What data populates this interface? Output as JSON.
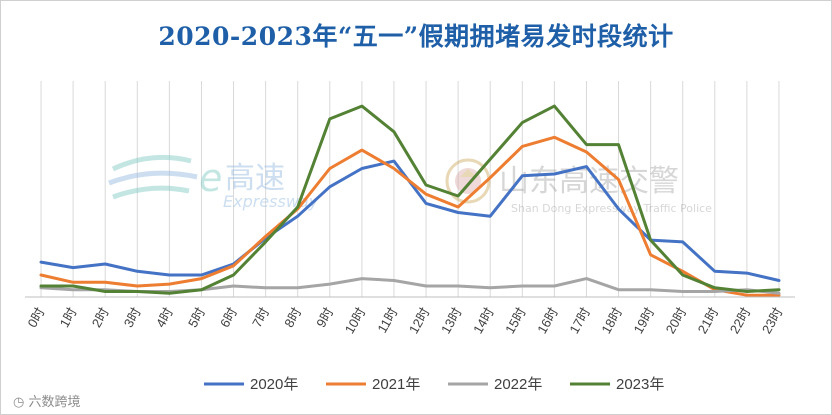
{
  "chart_data": {
    "type": "line",
    "title": "2020-2023年“五一”假期拥堵易发时段统计",
    "categories": [
      "0时",
      "1时",
      "2时",
      "3时",
      "4时",
      "5时",
      "6时",
      "7时",
      "8时",
      "9时",
      "10时",
      "11时",
      "12时",
      "13时",
      "14时",
      "15时",
      "16时",
      "17时",
      "18时",
      "19时",
      "20时",
      "21时",
      "22时",
      "23时"
    ],
    "ylim": [
      0,
      100
    ],
    "grid": "vertical",
    "legend_position": "bottom",
    "series": [
      {
        "name": "2020年",
        "color": "#4472c4",
        "values": [
          19,
          16,
          18,
          14,
          12,
          12,
          18,
          32,
          44,
          60,
          70,
          74,
          51,
          46,
          44,
          66,
          67,
          71,
          48,
          31,
          30,
          14,
          13,
          9
        ]
      },
      {
        "name": "2021年",
        "color": "#ed7d31",
        "values": [
          12,
          8,
          8,
          6,
          7,
          10,
          17,
          33,
          48,
          70,
          80,
          70,
          56,
          49,
          65,
          82,
          87,
          79,
          64,
          23,
          14,
          4,
          1,
          1
        ]
      },
      {
        "name": "2022年",
        "color": "#a5a5a5",
        "values": [
          5,
          4,
          4,
          3,
          3,
          4,
          6,
          5,
          5,
          7,
          10,
          9,
          6,
          6,
          5,
          6,
          6,
          10,
          4,
          4,
          3,
          3,
          4,
          2
        ]
      },
      {
        "name": "2023年",
        "color": "#548235",
        "values": [
          6,
          6,
          3,
          3,
          2,
          4,
          12,
          30,
          49,
          97,
          104,
          90,
          61,
          55,
          75,
          95,
          104,
          83,
          83,
          31,
          12,
          5,
          3,
          4
        ]
      }
    ]
  },
  "watermarks": {
    "brand_main": "高速",
    "brand_sub": "Expressway",
    "police_main": "山东高速交警",
    "police_sub": "Shan Dong Expressway Traffic Police"
  },
  "credit": "六数跨境"
}
